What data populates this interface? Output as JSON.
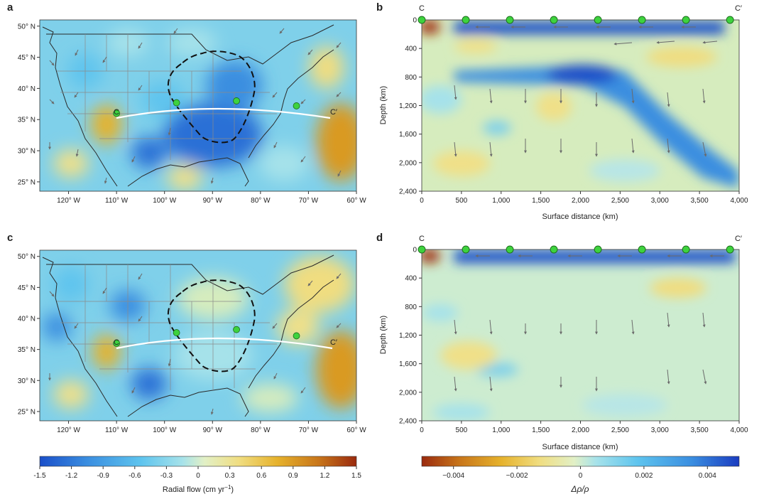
{
  "panel_letters": {
    "a": "a",
    "b": "b",
    "c": "c",
    "d": "d"
  },
  "chart_data": [
    {
      "panel": "a",
      "type": "heatmap",
      "description_label": "map",
      "x_ticks": [
        "120° W",
        "110° W",
        "100° W",
        "90° W",
        "80° W",
        "70° W",
        "60° W"
      ],
      "x_tick_values": [
        -120,
        -110,
        -100,
        -90,
        -80,
        -70,
        -60
      ],
      "y_ticks": [
        "50° N",
        "45° N",
        "40° N",
        "35° N",
        "30° N",
        "25° N"
      ],
      "y_tick_values": [
        50,
        45,
        40,
        35,
        30,
        25
      ],
      "xlim": [
        -126,
        -60
      ],
      "ylim": [
        23.5,
        51
      ],
      "profile_labels": [
        "C",
        "C′"
      ],
      "profile_points_lon": [
        -110,
        -97.5,
        -85,
        -72.5
      ],
      "profile_points_lat": [
        36,
        37.7,
        38,
        37.2
      ]
    },
    {
      "panel": "b",
      "type": "heatmap",
      "xlabel": "Surface distance (km)",
      "ylabel": "Depth (km)",
      "x_ticks": [
        "0",
        "500",
        "1,000",
        "1,500",
        "2,000",
        "2,500",
        "3,000",
        "3,500",
        "4,000"
      ],
      "x_tick_values": [
        0,
        500,
        1000,
        1500,
        2000,
        2500,
        3000,
        3500,
        4000
      ],
      "y_ticks": [
        "0",
        "400",
        "800",
        "1,200",
        "1,600",
        "2,000",
        "2,400"
      ],
      "y_tick_values": [
        0,
        400,
        800,
        1200,
        1600,
        2000,
        2400
      ],
      "xlim": [
        0,
        4000
      ],
      "ylim": [
        2400,
        0
      ],
      "profile_labels": [
        "C",
        "C′"
      ],
      "marker_distances": [
        0,
        555,
        1110,
        1665,
        2220,
        2775,
        3330,
        3885
      ]
    },
    {
      "panel": "c",
      "type": "heatmap",
      "x_ticks": [
        "120° W",
        "110° W",
        "100° W",
        "90° W",
        "80° W",
        "70° W",
        "60° W"
      ],
      "x_tick_values": [
        -120,
        -110,
        -100,
        -90,
        -80,
        -70,
        -60
      ],
      "y_ticks": [
        "50° N",
        "45° N",
        "40° N",
        "35° N",
        "30° N",
        "25° N"
      ],
      "y_tick_values": [
        50,
        45,
        40,
        35,
        30,
        25
      ],
      "xlim": [
        -126,
        -60
      ],
      "ylim": [
        23.5,
        51
      ],
      "profile_labels": [
        "C",
        "C′"
      ],
      "profile_points_lon": [
        -110,
        -97.5,
        -85,
        -72.5
      ],
      "profile_points_lat": [
        36,
        37.7,
        38.2,
        37.2
      ]
    },
    {
      "panel": "d",
      "type": "heatmap",
      "xlabel": "Surface distance (km)",
      "ylabel": "Depth (km)",
      "x_ticks": [
        "0",
        "500",
        "1,000",
        "1,500",
        "2,000",
        "2,500",
        "3,000",
        "3,500",
        "4,000"
      ],
      "x_tick_values": [
        0,
        500,
        1000,
        1500,
        2000,
        2500,
        3000,
        3500,
        4000
      ],
      "y_ticks": [
        "0",
        "400",
        "800",
        "1,200",
        "1,600",
        "2,000",
        "2,400"
      ],
      "y_tick_values": [
        0,
        400,
        800,
        1200,
        1600,
        2000,
        2400
      ],
      "xlim": [
        0,
        4000
      ],
      "ylim": [
        2400,
        0
      ],
      "profile_labels": [
        "C",
        "C′"
      ],
      "marker_distances": [
        0,
        555,
        1110,
        1665,
        2220,
        2775,
        3330,
        3885
      ]
    },
    {
      "panel": "colorbar-left",
      "type": "colorbar",
      "label": "Radial flow (cm yr",
      "label_sup": "−1",
      "label_end": ")",
      "range": [
        -1.5,
        1.5
      ],
      "tick_values": [
        -1.5,
        -1.2,
        -0.9,
        -0.6,
        -0.3,
        0,
        0.3,
        0.6,
        0.9,
        1.2,
        1.5
      ],
      "tick_labels": [
        "-1.5",
        "-1.2",
        "-0.9",
        "-0.6",
        "-0.3",
        "0",
        "0.3",
        "0.6",
        "0.9",
        "1.2",
        "1.5"
      ],
      "colors": [
        "#1a4fc9",
        "#3a8ee0",
        "#5ec4ee",
        "#9fe0ec",
        "#dff0c8",
        "#f0e088",
        "#e8b830",
        "#c87818",
        "#a03010"
      ]
    },
    {
      "panel": "colorbar-right",
      "type": "colorbar",
      "label": "Δρ/ρ",
      "range": [
        -0.005,
        0.005
      ],
      "tick_values": [
        -0.004,
        -0.002,
        0,
        0.002,
        0.004
      ],
      "tick_labels": [
        "−0.004",
        "−0.002",
        "0",
        "0.002",
        "0.004"
      ],
      "colors": [
        "#a03010",
        "#c87818",
        "#e8b830",
        "#f0e088",
        "#dff0c8",
        "#9fe0ec",
        "#5ec4ee",
        "#3a8ee0",
        "#1a3cc0"
      ]
    }
  ]
}
